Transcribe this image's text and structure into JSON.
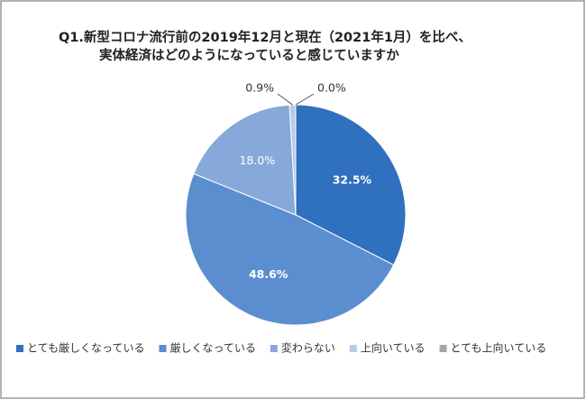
{
  "chart_data": {
    "type": "pie",
    "title": [
      "Q1.新型コロナ流行前の2019年12月と現在（2021年1月）を比べ、",
      "実体経済はどのようになっていると感じていますか"
    ],
    "series": [
      {
        "name": "とても厳しくなっている",
        "color": "#2f70bf",
        "values": [
          32.5
        ],
        "value_labels": [
          "32.5%"
        ]
      },
      {
        "name": "厳しくなっている",
        "color": "#5a8ecf",
        "values": [
          48.6
        ],
        "value_labels": [
          "48.6%"
        ]
      },
      {
        "name": "変わらない",
        "color": "#86a9d9",
        "values": [
          18.0
        ],
        "value_labels": [
          "18.0%"
        ]
      },
      {
        "name": "上向いている",
        "color": "#b7cbe9",
        "values": [
          0.9
        ],
        "value_labels": [
          "0.9%"
        ]
      },
      {
        "name": "とても上向いている",
        "color": "#a6a6a6",
        "values": [
          0.0
        ],
        "value_labels": [
          "0.0%"
        ]
      }
    ],
    "legend": "bottom"
  }
}
